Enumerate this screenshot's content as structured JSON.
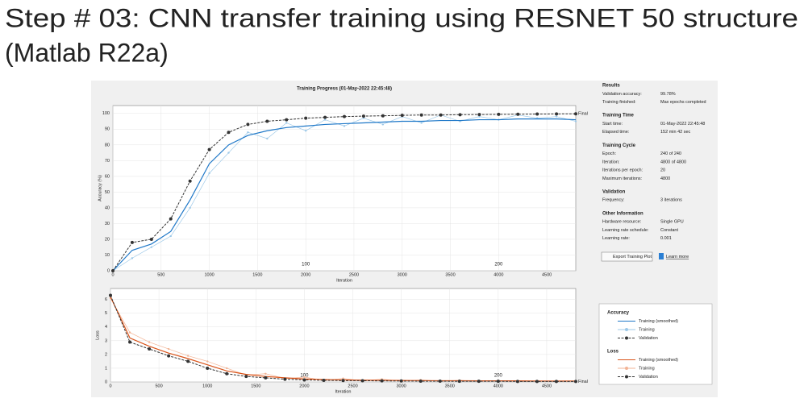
{
  "slide_title": [
    "Step # 03: CNN transfer training using RESNET 50 structure",
    "(Matlab R22a)"
  ],
  "chart_data": [
    {
      "type": "line",
      "title": "Training Progress (01-May-2022 22:45:48)",
      "xlabel": "Iteration",
      "ylabel": "Accuracy (%)",
      "xlim": [
        0,
        4800
      ],
      "ylim": [
        0,
        105
      ],
      "xticks": [
        0,
        500,
        1000,
        1500,
        2000,
        2500,
        3000,
        3500,
        4000,
        4500
      ],
      "yticks": [
        0,
        10,
        20,
        30,
        40,
        50,
        60,
        70,
        80,
        90,
        100
      ],
      "grid": true,
      "legend_title": "Accuracy",
      "annotations": [
        {
          "text": "100",
          "x": 2000
        },
        {
          "text": "200",
          "x": 4000
        }
      ],
      "end_label": "Final",
      "x": [
        0,
        200,
        400,
        600,
        800,
        1000,
        1200,
        1400,
        1600,
        1800,
        2000,
        2200,
        2400,
        2600,
        2800,
        3000,
        3200,
        3400,
        3600,
        3800,
        4000,
        4200,
        4400,
        4600,
        4800
      ],
      "series": [
        {
          "name": "Training (smoothed)",
          "color": "#1f78c8",
          "style": "smoothed",
          "values": [
            0,
            13,
            17,
            25,
            45,
            68,
            80,
            86,
            89,
            91,
            92,
            93,
            93.5,
            94,
            94.5,
            95,
            95,
            95.5,
            95.5,
            96,
            96,
            96.5,
            96.5,
            96.5,
            96
          ]
        },
        {
          "name": "Training",
          "color": "#9cc8e8",
          "style": "raw",
          "values": [
            0,
            8,
            15,
            22,
            40,
            62,
            75,
            88,
            84,
            94,
            89,
            96,
            92,
            97,
            93,
            98,
            94,
            99,
            95,
            98,
            96,
            99,
            97,
            98,
            95
          ]
        },
        {
          "name": "Validation",
          "color": "#333333",
          "style": "validation",
          "values": [
            0,
            18,
            20,
            33,
            57,
            77,
            88,
            93,
            95,
            96,
            97,
            97.5,
            98,
            98.3,
            98.5,
            98.8,
            99,
            99,
            99.2,
            99.3,
            99.4,
            99.5,
            99.6,
            99.7,
            99.78
          ]
        }
      ]
    },
    {
      "type": "line",
      "xlabel": "Iteration",
      "ylabel": "Loss",
      "xlim": [
        0,
        4800
      ],
      "ylim": [
        0,
        6.8
      ],
      "xticks": [
        0,
        500,
        1000,
        1500,
        2000,
        2500,
        3000,
        3500,
        4000,
        4500
      ],
      "yticks": [
        0,
        1,
        2,
        3,
        4,
        5,
        6
      ],
      "grid": true,
      "legend_title": "Loss",
      "annotations": [
        {
          "text": "100",
          "x": 2000
        },
        {
          "text": "200",
          "x": 4000
        }
      ],
      "end_label": "Final",
      "x": [
        0,
        200,
        400,
        600,
        800,
        1000,
        1200,
        1400,
        1600,
        1800,
        2000,
        2200,
        2400,
        2600,
        2800,
        3000,
        3200,
        3400,
        3600,
        3800,
        4000,
        4200,
        4400,
        4600,
        4800
      ],
      "series": [
        {
          "name": "Training (smoothed)",
          "color": "#d95319",
          "style": "smoothed",
          "values": [
            6.2,
            3.2,
            2.6,
            2.1,
            1.7,
            1.25,
            0.8,
            0.55,
            0.4,
            0.3,
            0.22,
            0.18,
            0.15,
            0.13,
            0.12,
            0.11,
            0.1,
            0.09,
            0.09,
            0.08,
            0.08,
            0.08,
            0.07,
            0.07,
            0.07
          ]
        },
        {
          "name": "Training",
          "color": "#f2b394",
          "style": "raw",
          "values": [
            6.1,
            3.6,
            2.9,
            2.4,
            1.9,
            1.5,
            1.0,
            0.5,
            0.6,
            0.25,
            0.35,
            0.12,
            0.25,
            0.08,
            0.2,
            0.06,
            0.15,
            0.05,
            0.12,
            0.04,
            0.1,
            0.04,
            0.08,
            0.03,
            0.06
          ]
        },
        {
          "name": "Validation",
          "color": "#333333",
          "style": "validation",
          "values": [
            6.3,
            2.9,
            2.4,
            1.9,
            1.5,
            1.0,
            0.6,
            0.4,
            0.3,
            0.2,
            0.15,
            0.12,
            0.1,
            0.09,
            0.08,
            0.07,
            0.06,
            0.06,
            0.05,
            0.05,
            0.05,
            0.04,
            0.04,
            0.04,
            0.04
          ]
        }
      ]
    }
  ],
  "info_panel": [
    {
      "heading": "Results",
      "rows": [
        [
          "Validation accuracy:",
          "99.78%"
        ],
        [
          "Training finished:",
          "Max epochs completed"
        ]
      ]
    },
    {
      "heading": "Training Time",
      "rows": [
        [
          "Start time:",
          "01-May-2022 22:45:48"
        ],
        [
          "Elapsed time:",
          "152 min 42 sec"
        ]
      ]
    },
    {
      "heading": "Training Cycle",
      "rows": [
        [
          "Epoch:",
          "240 of 240"
        ],
        [
          "Iteration:",
          "4800 of 4800"
        ],
        [
          "Iterations per epoch:",
          "20"
        ],
        [
          "Maximum iterations:",
          "4800"
        ]
      ]
    },
    {
      "heading": "Validation",
      "rows": [
        [
          "Frequency:",
          "3 iterations"
        ]
      ]
    },
    {
      "heading": "Other Information",
      "rows": [
        [
          "Hardware resource:",
          "Single GPU"
        ],
        [
          "Learning rate schedule:",
          "Constant"
        ],
        [
          "Learning rate:",
          "0.001"
        ]
      ]
    }
  ],
  "buttons": [
    "Export Training Plot",
    "Learn more"
  ]
}
